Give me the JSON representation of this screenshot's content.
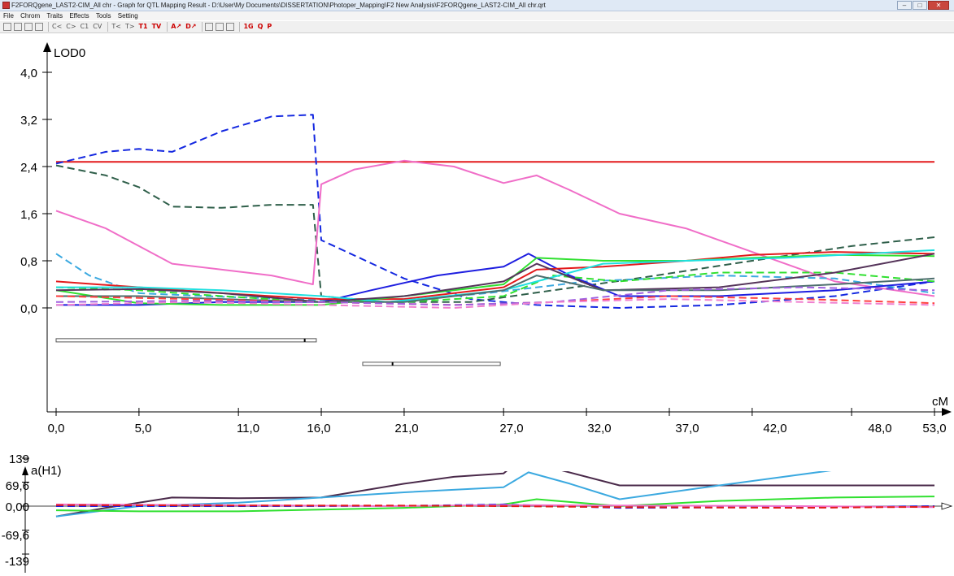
{
  "window": {
    "title": "F2FORQgene_LAST2-CIM_All chr - Graph for QTL Mapping Result - D:\\User\\My Documents\\DISSERTATION\\Photoper_Mapping\\F2 New Analysis\\F2FORQgene_LAST2-CIM_All chr.qrt"
  },
  "menu": [
    "File",
    "Chrom",
    "Traits",
    "Effects",
    "Tools",
    "Setting"
  ],
  "toolbar": {
    "buttons": [
      "open-icon",
      "save-icon",
      "copy-icon",
      "print-icon",
      "C<",
      "C>",
      "C1",
      "CV",
      "T<",
      "T>",
      "T1",
      "TV",
      "A↗",
      "D↗",
      "lines-icon",
      "bars-icon",
      "scatter-icon",
      "1G",
      "Q",
      "P"
    ]
  },
  "chart_data": [
    {
      "type": "line",
      "ylabel": "LOD0",
      "xlabel": "cM",
      "xlim": [
        0,
        53
      ],
      "ylim": [
        -3.3,
        4.0
      ],
      "x_ticks": [
        "0,0",
        "5,0",
        "11,0",
        "16,0",
        "21,0",
        "27,0",
        "32,0",
        "37,0",
        "42,0",
        "48,0",
        "53,0"
      ],
      "y_ticks": [
        "0,0",
        "0,8",
        "1,6",
        "2,4",
        "3,2",
        "4,0"
      ],
      "threshold": {
        "value": 2.48,
        "color": "#e31a1c"
      },
      "series": [
        {
          "color": "#1428e0",
          "dash": true,
          "points": [
            [
              0,
              2.45
            ],
            [
              3,
              2.65
            ],
            [
              5,
              2.7
            ],
            [
              7,
              2.65
            ],
            [
              10,
              3.0
            ],
            [
              13,
              3.25
            ],
            [
              15.5,
              3.28
            ],
            [
              16,
              1.15
            ],
            [
              21,
              0.5
            ],
            [
              25,
              0.15
            ],
            [
              29,
              0.05
            ],
            [
              34,
              0.0
            ],
            [
              40,
              0.05
            ],
            [
              47,
              0.2
            ],
            [
              53,
              0.45
            ]
          ]
        },
        {
          "color": "#2f5f4a",
          "dash": true,
          "points": [
            [
              0,
              2.42
            ],
            [
              3,
              2.25
            ],
            [
              5,
              2.05
            ],
            [
              7,
              1.72
            ],
            [
              10,
              1.7
            ],
            [
              13,
              1.75
            ],
            [
              15.5,
              1.75
            ],
            [
              16,
              0.2
            ],
            [
              20,
              0.1
            ],
            [
              25,
              0.1
            ],
            [
              30,
              0.3
            ],
            [
              35,
              0.5
            ],
            [
              42,
              0.8
            ],
            [
              48,
              1.05
            ],
            [
              53,
              1.2
            ]
          ]
        },
        {
          "color": "#f06ec8",
          "dash": false,
          "points": [
            [
              0,
              1.65
            ],
            [
              3,
              1.35
            ],
            [
              5,
              1.05
            ],
            [
              7,
              0.75
            ],
            [
              10,
              0.65
            ],
            [
              13,
              0.55
            ],
            [
              15.5,
              0.4
            ],
            [
              16,
              2.1
            ],
            [
              18,
              2.35
            ],
            [
              21,
              2.5
            ],
            [
              24,
              2.4
            ],
            [
              27,
              2.12
            ],
            [
              29,
              2.25
            ],
            [
              31,
              2.0
            ],
            [
              34,
              1.6
            ],
            [
              38,
              1.35
            ],
            [
              42,
              0.95
            ],
            [
              47,
              0.45
            ],
            [
              53,
              0.2
            ]
          ]
        },
        {
          "color": "#3ba9e0",
          "dash": true,
          "points": [
            [
              0,
              0.92
            ],
            [
              2,
              0.55
            ],
            [
              5,
              0.25
            ],
            [
              9,
              0.2
            ],
            [
              14,
              0.15
            ],
            [
              20,
              0.1
            ],
            [
              26,
              0.25
            ],
            [
              32,
              0.45
            ],
            [
              40,
              0.55
            ],
            [
              47,
              0.5
            ],
            [
              53,
              0.25
            ]
          ]
        },
        {
          "color": "#1e1ee0",
          "dash": false,
          "points": [
            [
              0,
              0.05
            ],
            [
              5,
              0.05
            ],
            [
              10,
              0.1
            ],
            [
              16,
              0.1
            ],
            [
              19,
              0.3
            ],
            [
              23,
              0.55
            ],
            [
              27,
              0.7
            ],
            [
              28.5,
              0.92
            ],
            [
              31,
              0.55
            ],
            [
              34,
              0.2
            ],
            [
              40,
              0.2
            ],
            [
              47,
              0.3
            ],
            [
              53,
              0.45
            ]
          ]
        },
        {
          "color": "#e31a1c",
          "dash": false,
          "points": [
            [
              0,
              0.45
            ],
            [
              5,
              0.35
            ],
            [
              10,
              0.25
            ],
            [
              16,
              0.15
            ],
            [
              21,
              0.15
            ],
            [
              27,
              0.35
            ],
            [
              29,
              0.65
            ],
            [
              33,
              0.7
            ],
            [
              38,
              0.8
            ],
            [
              42,
              0.9
            ],
            [
              47,
              0.95
            ],
            [
              53,
              0.92
            ]
          ]
        },
        {
          "color": "#30e030",
          "dash": false,
          "points": [
            [
              0,
              0.3
            ],
            [
              5,
              0.08
            ],
            [
              10,
              0.05
            ],
            [
              16,
              0.05
            ],
            [
              21,
              0.2
            ],
            [
              27,
              0.4
            ],
            [
              29,
              0.85
            ],
            [
              33,
              0.8
            ],
            [
              38,
              0.8
            ],
            [
              42,
              0.85
            ],
            [
              47,
              0.9
            ],
            [
              53,
              0.88
            ]
          ]
        },
        {
          "color": "#30e030",
          "dash": true,
          "points": [
            [
              0,
              0.35
            ],
            [
              5,
              0.3
            ],
            [
              10,
              0.2
            ],
            [
              16,
              0.1
            ],
            [
              21,
              0.1
            ],
            [
              27,
              0.2
            ],
            [
              30,
              0.55
            ],
            [
              34,
              0.45
            ],
            [
              40,
              0.6
            ],
            [
              47,
              0.6
            ],
            [
              53,
              0.45
            ]
          ]
        },
        {
          "color": "#20e0e0",
          "dash": false,
          "points": [
            [
              0,
              0.35
            ],
            [
              5,
              0.35
            ],
            [
              10,
              0.3
            ],
            [
              16,
              0.2
            ],
            [
              20,
              0.1
            ],
            [
              27,
              0.3
            ],
            [
              33,
              0.75
            ],
            [
              38,
              0.8
            ],
            [
              44,
              0.85
            ],
            [
              53,
              0.98
            ]
          ]
        },
        {
          "color": "#55345a",
          "dash": false,
          "points": [
            [
              0,
              0.3
            ],
            [
              5,
              0.32
            ],
            [
              10,
              0.25
            ],
            [
              16,
              0.1
            ],
            [
              21,
              0.2
            ],
            [
              27,
              0.45
            ],
            [
              29,
              0.75
            ],
            [
              33,
              0.3
            ],
            [
              40,
              0.35
            ],
            [
              47,
              0.6
            ],
            [
              53,
              0.92
            ]
          ]
        },
        {
          "color": "#4d6e6e",
          "dash": false,
          "points": [
            [
              0,
              0.2
            ],
            [
              5,
              0.2
            ],
            [
              10,
              0.15
            ],
            [
              16,
              0.1
            ],
            [
              21,
              0.1
            ],
            [
              27,
              0.3
            ],
            [
              29,
              0.55
            ],
            [
              33,
              0.3
            ],
            [
              40,
              0.3
            ],
            [
              47,
              0.4
            ],
            [
              53,
              0.5
            ]
          ]
        },
        {
          "color": "#ff4040",
          "dash": true,
          "points": [
            [
              0,
              0.2
            ],
            [
              8,
              0.15
            ],
            [
              16,
              0.1
            ],
            [
              24,
              0.05
            ],
            [
              30,
              0.1
            ],
            [
              37,
              0.2
            ],
            [
              45,
              0.15
            ],
            [
              53,
              0.08
            ]
          ]
        },
        {
          "color": "#a060e0",
          "dash": true,
          "points": [
            [
              0,
              0.1
            ],
            [
              8,
              0.12
            ],
            [
              16,
              0.1
            ],
            [
              24,
              0.05
            ],
            [
              30,
              0.1
            ],
            [
              37,
              0.3
            ],
            [
              45,
              0.35
            ],
            [
              53,
              0.3
            ]
          ]
        },
        {
          "color": "#f080d0",
          "dash": true,
          "points": [
            [
              0,
              0.05
            ],
            [
              8,
              0.1
            ],
            [
              16,
              0.05
            ],
            [
              24,
              0.0
            ],
            [
              30,
              0.1
            ],
            [
              37,
              0.15
            ],
            [
              45,
              0.1
            ],
            [
              53,
              0.05
            ]
          ]
        }
      ],
      "intervals": [
        {
          "x_start": 0.0,
          "x_end": 15.7,
          "peak": 15.0,
          "level": -0.55
        },
        {
          "x_start": 18.5,
          "x_end": 26.8,
          "peak": 20.3,
          "level": -0.95
        }
      ]
    },
    {
      "type": "line",
      "ylabel": "a(H1)",
      "xlim": [
        0,
        53
      ],
      "ylim": [
        -139,
        139
      ],
      "y_ticks": [
        "139",
        "69,6",
        "0,00",
        "-69,6",
        "-139"
      ],
      "series": [
        {
          "color": "#4a2a4a",
          "dash": false,
          "points": [
            [
              0,
              -30
            ],
            [
              3,
              -5
            ],
            [
              7,
              25
            ],
            [
              11,
              23
            ],
            [
              16,
              25
            ],
            [
              21,
              65
            ],
            [
              24,
              85
            ],
            [
              27,
              95
            ],
            [
              27.5,
              115
            ],
            [
              30,
              110
            ],
            [
              34,
              60
            ],
            [
              40,
              60
            ],
            [
              47,
              60
            ],
            [
              53,
              60
            ]
          ]
        },
        {
          "color": "#3ba9e0",
          "dash": false,
          "points": [
            [
              0,
              -30
            ],
            [
              5,
              0
            ],
            [
              11,
              10
            ],
            [
              16,
              25
            ],
            [
              21,
              40
            ],
            [
              27,
              55
            ],
            [
              28.5,
              98
            ],
            [
              31,
              65
            ],
            [
              34,
              20
            ],
            [
              40,
              60
            ],
            [
              47,
              105
            ],
            [
              53,
              135
            ]
          ]
        },
        {
          "color": "#30e030",
          "dash": false,
          "points": [
            [
              0,
              -12
            ],
            [
              5,
              -15
            ],
            [
              11,
              -15
            ],
            [
              16,
              -10
            ],
            [
              21,
              -5
            ],
            [
              27,
              5
            ],
            [
              29,
              20
            ],
            [
              34,
              0
            ],
            [
              40,
              15
            ],
            [
              47,
              25
            ],
            [
              53,
              28
            ]
          ]
        },
        {
          "color": "#1e1ee0",
          "dash": true,
          "points": [
            [
              0,
              0
            ],
            [
              10,
              0
            ],
            [
              20,
              0
            ],
            [
              27,
              5
            ],
            [
              34,
              -5
            ],
            [
              45,
              -3
            ],
            [
              53,
              0
            ]
          ]
        },
        {
          "color": "#f06ec8",
          "dash": false,
          "points": [
            [
              0,
              5
            ],
            [
              10,
              3
            ],
            [
              20,
              0
            ],
            [
              27,
              3
            ],
            [
              34,
              2
            ],
            [
              45,
              0
            ],
            [
              53,
              -3
            ]
          ]
        },
        {
          "color": "#e31a1c",
          "dash": true,
          "points": [
            [
              0,
              3
            ],
            [
              10,
              2
            ],
            [
              20,
              2
            ],
            [
              27,
              0
            ],
            [
              34,
              -3
            ],
            [
              45,
              -5
            ],
            [
              53,
              -2
            ]
          ]
        }
      ]
    }
  ]
}
